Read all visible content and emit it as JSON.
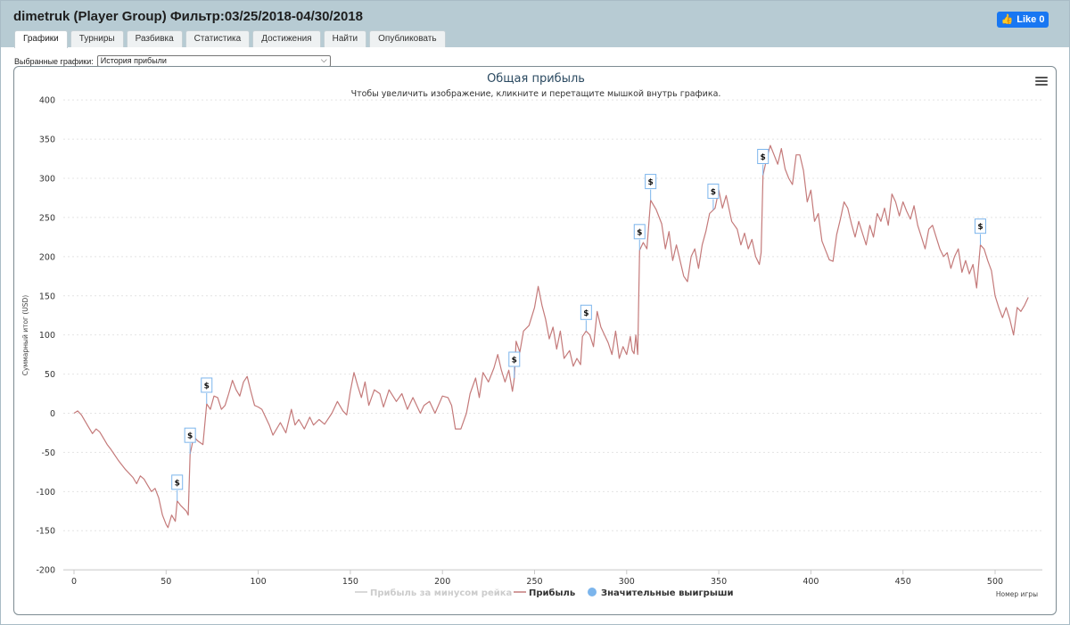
{
  "header": {
    "title": "dimetruk (Player Group) Фильтр:03/25/2018-04/30/2018",
    "fb_like": "Like 0"
  },
  "tabs": [
    {
      "label": "Графики",
      "active": true
    },
    {
      "label": "Турниры"
    },
    {
      "label": "Разбивка"
    },
    {
      "label": "Статистика"
    },
    {
      "label": "Достижения"
    },
    {
      "label": "Найти"
    },
    {
      "label": "Опубликовать"
    }
  ],
  "chart_select": {
    "label": "Выбранные графики:",
    "value": "История прибыли"
  },
  "colors": {
    "profit_line": "#c47a7a",
    "rake_line": "#cccccc",
    "big_wins": "#7cb5ec",
    "title": "#2b4a61",
    "header_bg": "#b7cbd3"
  },
  "chart_data": {
    "type": "line",
    "title": "Общая прибыль",
    "subtitle": "Чтобы увеличить изображение, кликните и перетащите мышкой внутрь графика.",
    "xlabel": "Номер игры",
    "ylabel": "Суммарный итог (USD)",
    "xlim": [
      0,
      525
    ],
    "ylim": [
      -200,
      400
    ],
    "x_ticks": [
      0,
      50,
      100,
      150,
      200,
      250,
      300,
      350,
      400,
      450,
      500
    ],
    "y_ticks": [
      -200,
      -150,
      -100,
      -50,
      0,
      50,
      100,
      150,
      200,
      250,
      300,
      350,
      400
    ],
    "grid": "horizontal-dashed",
    "legend": {
      "placement": "bottom-center",
      "items": [
        {
          "name": "Прибыль за минусом рейка",
          "color": "#cccccc",
          "symbol": "line",
          "hidden": true
        },
        {
          "name": "Прибыль",
          "color": "#c47a7a",
          "symbol": "line"
        },
        {
          "name": "Значительные выигрыши",
          "color": "#7cb5ec",
          "symbol": "circle"
        }
      ]
    },
    "series": [
      {
        "name": "Прибыль",
        "points": [
          [
            0,
            0
          ],
          [
            2,
            3
          ],
          [
            4,
            -2
          ],
          [
            6,
            -10
          ],
          [
            8,
            -18
          ],
          [
            10,
            -26
          ],
          [
            12,
            -20
          ],
          [
            14,
            -24
          ],
          [
            16,
            -32
          ],
          [
            18,
            -40
          ],
          [
            20,
            -46
          ],
          [
            24,
            -60
          ],
          [
            28,
            -72
          ],
          [
            32,
            -82
          ],
          [
            34,
            -90
          ],
          [
            36,
            -80
          ],
          [
            38,
            -84
          ],
          [
            40,
            -92
          ],
          [
            42,
            -100
          ],
          [
            44,
            -96
          ],
          [
            46,
            -108
          ],
          [
            48,
            -130
          ],
          [
            50,
            -142
          ],
          [
            51,
            -146
          ],
          [
            53,
            -130
          ],
          [
            55,
            -138
          ],
          [
            56,
            -112
          ],
          [
            58,
            -118
          ],
          [
            61,
            -125
          ],
          [
            62,
            -130
          ],
          [
            63,
            -52
          ],
          [
            65,
            -30
          ],
          [
            67,
            -35
          ],
          [
            70,
            -40
          ],
          [
            72,
            12
          ],
          [
            74,
            5
          ],
          [
            76,
            22
          ],
          [
            78,
            20
          ],
          [
            80,
            5
          ],
          [
            82,
            10
          ],
          [
            84,
            25
          ],
          [
            86,
            42
          ],
          [
            88,
            30
          ],
          [
            90,
            22
          ],
          [
            92,
            40
          ],
          [
            94,
            47
          ],
          [
            96,
            28
          ],
          [
            98,
            10
          ],
          [
            100,
            8
          ],
          [
            102,
            5
          ],
          [
            106,
            -15
          ],
          [
            108,
            -28
          ],
          [
            112,
            -12
          ],
          [
            115,
            -25
          ],
          [
            118,
            5
          ],
          [
            120,
            -15
          ],
          [
            122,
            -8
          ],
          [
            125,
            -20
          ],
          [
            128,
            -5
          ],
          [
            130,
            -15
          ],
          [
            133,
            -8
          ],
          [
            136,
            -14
          ],
          [
            140,
            0
          ],
          [
            143,
            15
          ],
          [
            146,
            3
          ],
          [
            148,
            -2
          ],
          [
            150,
            28
          ],
          [
            152,
            52
          ],
          [
            154,
            35
          ],
          [
            156,
            20
          ],
          [
            158,
            40
          ],
          [
            160,
            10
          ],
          [
            163,
            30
          ],
          [
            166,
            25
          ],
          [
            168,
            8
          ],
          [
            171,
            30
          ],
          [
            175,
            15
          ],
          [
            178,
            25
          ],
          [
            181,
            5
          ],
          [
            184,
            20
          ],
          [
            188,
            0
          ],
          [
            190,
            10
          ],
          [
            193,
            15
          ],
          [
            196,
            0
          ],
          [
            200,
            22
          ],
          [
            203,
            20
          ],
          [
            205,
            10
          ],
          [
            207,
            -20
          ],
          [
            210,
            -20
          ],
          [
            213,
            0
          ],
          [
            215,
            25
          ],
          [
            218,
            45
          ],
          [
            220,
            20
          ],
          [
            222,
            52
          ],
          [
            225,
            40
          ],
          [
            228,
            58
          ],
          [
            230,
            75
          ],
          [
            232,
            55
          ],
          [
            234,
            40
          ],
          [
            236,
            55
          ],
          [
            238,
            28
          ],
          [
            239,
            45
          ],
          [
            240,
            92
          ],
          [
            242,
            78
          ],
          [
            244,
            105
          ],
          [
            247,
            112
          ],
          [
            250,
            135
          ],
          [
            252,
            162
          ],
          [
            254,
            138
          ],
          [
            256,
            120
          ],
          [
            258,
            95
          ],
          [
            260,
            110
          ],
          [
            262,
            82
          ],
          [
            264,
            105
          ],
          [
            266,
            70
          ],
          [
            269,
            80
          ],
          [
            271,
            60
          ],
          [
            273,
            70
          ],
          [
            275,
            62
          ],
          [
            276,
            98
          ],
          [
            278,
            105
          ],
          [
            280,
            100
          ],
          [
            282,
            85
          ],
          [
            284,
            130
          ],
          [
            286,
            110
          ],
          [
            288,
            100
          ],
          [
            290,
            90
          ],
          [
            292,
            75
          ],
          [
            294,
            105
          ],
          [
            296,
            70
          ],
          [
            298,
            85
          ],
          [
            300,
            75
          ],
          [
            302,
            98
          ],
          [
            303,
            80
          ],
          [
            304,
            76
          ],
          [
            305,
            100
          ],
          [
            306,
            75
          ],
          [
            307,
            208
          ],
          [
            309,
            218
          ],
          [
            311,
            210
          ],
          [
            313,
            272
          ],
          [
            316,
            260
          ],
          [
            319,
            242
          ],
          [
            321,
            210
          ],
          [
            323,
            232
          ],
          [
            325,
            195
          ],
          [
            327,
            215
          ],
          [
            329,
            195
          ],
          [
            331,
            175
          ],
          [
            333,
            168
          ],
          [
            335,
            200
          ],
          [
            337,
            210
          ],
          [
            339,
            185
          ],
          [
            341,
            215
          ],
          [
            343,
            232
          ],
          [
            345,
            255
          ],
          [
            348,
            262
          ],
          [
            350,
            285
          ],
          [
            352,
            262
          ],
          [
            354,
            278
          ],
          [
            357,
            245
          ],
          [
            360,
            235
          ],
          [
            362,
            215
          ],
          [
            364,
            230
          ],
          [
            366,
            210
          ],
          [
            368,
            222
          ],
          [
            370,
            200
          ],
          [
            372,
            190
          ],
          [
            373,
            205
          ],
          [
            374,
            304
          ],
          [
            376,
            325
          ],
          [
            378,
            342
          ],
          [
            380,
            330
          ],
          [
            382,
            318
          ],
          [
            384,
            338
          ],
          [
            386,
            312
          ],
          [
            388,
            300
          ],
          [
            390,
            292
          ],
          [
            392,
            330
          ],
          [
            394,
            330
          ],
          [
            396,
            310
          ],
          [
            398,
            270
          ],
          [
            400,
            285
          ],
          [
            402,
            245
          ],
          [
            404,
            255
          ],
          [
            406,
            220
          ],
          [
            408,
            208
          ],
          [
            410,
            196
          ],
          [
            412,
            194
          ],
          [
            414,
            228
          ],
          [
            416,
            248
          ],
          [
            418,
            270
          ],
          [
            420,
            262
          ],
          [
            422,
            242
          ],
          [
            424,
            225
          ],
          [
            426,
            245
          ],
          [
            428,
            230
          ],
          [
            430,
            215
          ],
          [
            432,
            240
          ],
          [
            434,
            225
          ],
          [
            436,
            255
          ],
          [
            438,
            245
          ],
          [
            440,
            262
          ],
          [
            442,
            240
          ],
          [
            444,
            280
          ],
          [
            446,
            270
          ],
          [
            448,
            252
          ],
          [
            450,
            270
          ],
          [
            452,
            258
          ],
          [
            454,
            248
          ],
          [
            456,
            265
          ],
          [
            458,
            240
          ],
          [
            460,
            225
          ],
          [
            462,
            210
          ],
          [
            464,
            235
          ],
          [
            466,
            240
          ],
          [
            468,
            225
          ],
          [
            470,
            210
          ],
          [
            472,
            200
          ],
          [
            474,
            205
          ],
          [
            476,
            185
          ],
          [
            478,
            200
          ],
          [
            480,
            210
          ],
          [
            482,
            180
          ],
          [
            484,
            195
          ],
          [
            486,
            178
          ],
          [
            488,
            190
          ],
          [
            490,
            160
          ],
          [
            492,
            215
          ],
          [
            494,
            210
          ],
          [
            496,
            195
          ],
          [
            498,
            182
          ],
          [
            500,
            150
          ],
          [
            502,
            135
          ],
          [
            504,
            122
          ],
          [
            506,
            135
          ],
          [
            508,
            120
          ],
          [
            510,
            100
          ],
          [
            512,
            135
          ],
          [
            514,
            130
          ],
          [
            516,
            138
          ],
          [
            518,
            148
          ]
        ]
      }
    ],
    "significant_wins": [
      56,
      63,
      72,
      239,
      278,
      307,
      313,
      347,
      374,
      492
    ]
  }
}
